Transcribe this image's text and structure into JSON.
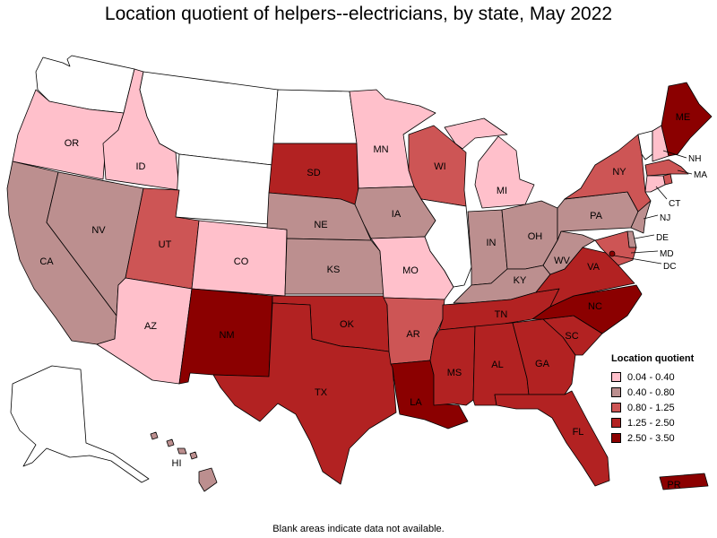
{
  "title": "Location quotient of helpers--electricians, by state, May 2022",
  "footnote": "Blank areas indicate data not available.",
  "legend": {
    "title": "Location quotient",
    "items": [
      {
        "label": "0.04 - 0.40",
        "color": "#ffc0cb"
      },
      {
        "label": "0.40 - 0.80",
        "color": "#bc8f8f"
      },
      {
        "label": "0.80 - 1.25",
        "color": "#cd5555"
      },
      {
        "label": "1.25 - 2.50",
        "color": "#b22222"
      },
      {
        "label": "2.50 - 3.50",
        "color": "#8b0000"
      }
    ]
  },
  "states": {
    "WA": {
      "label": "",
      "bin": null
    },
    "OR": {
      "label": "OR",
      "bin": 0
    },
    "CA": {
      "label": "CA",
      "bin": 1
    },
    "ID": {
      "label": "ID",
      "bin": 0
    },
    "NV": {
      "label": "NV",
      "bin": 1
    },
    "MT": {
      "label": "",
      "bin": null
    },
    "WY": {
      "label": "",
      "bin": null
    },
    "UT": {
      "label": "UT",
      "bin": 2
    },
    "AZ": {
      "label": "AZ",
      "bin": 0
    },
    "CO": {
      "label": "CO",
      "bin": 0
    },
    "NM": {
      "label": "NM",
      "bin": 4
    },
    "ND": {
      "label": "",
      "bin": null
    },
    "SD": {
      "label": "SD",
      "bin": 3
    },
    "NE": {
      "label": "NE",
      "bin": 1
    },
    "KS": {
      "label": "KS",
      "bin": 1
    },
    "OK": {
      "label": "OK",
      "bin": 3
    },
    "TX": {
      "label": "TX",
      "bin": 3
    },
    "MN": {
      "label": "MN",
      "bin": 0
    },
    "IA": {
      "label": "IA",
      "bin": 1
    },
    "MO": {
      "label": "MO",
      "bin": 0
    },
    "AR": {
      "label": "AR",
      "bin": 2
    },
    "LA": {
      "label": "LA",
      "bin": 4
    },
    "WI": {
      "label": "WI",
      "bin": 2
    },
    "IL": {
      "label": "",
      "bin": null
    },
    "MI": {
      "label": "MI",
      "bin": 0
    },
    "IN": {
      "label": "IN",
      "bin": 1
    },
    "OH": {
      "label": "OH",
      "bin": 1
    },
    "KY": {
      "label": "KY",
      "bin": 1
    },
    "TN": {
      "label": "TN",
      "bin": 3
    },
    "MS": {
      "label": "MS",
      "bin": 3
    },
    "AL": {
      "label": "AL",
      "bin": 3
    },
    "GA": {
      "label": "GA",
      "bin": 3
    },
    "FL": {
      "label": "FL",
      "bin": 3
    },
    "SC": {
      "label": "SC",
      "bin": 3
    },
    "NC": {
      "label": "NC",
      "bin": 4
    },
    "VA": {
      "label": "VA",
      "bin": 3
    },
    "WV": {
      "label": "WV",
      "bin": 1
    },
    "PA": {
      "label": "PA",
      "bin": 1
    },
    "NY": {
      "label": "NY",
      "bin": 2
    },
    "ME": {
      "label": "ME",
      "bin": 4
    },
    "VT": {
      "label": "",
      "bin": null
    },
    "NH": {
      "label": "NH",
      "bin": 0
    },
    "MA": {
      "label": "MA",
      "bin": 2
    },
    "CT": {
      "label": "CT",
      "bin": 0
    },
    "RI": {
      "label": "",
      "bin": 2
    },
    "NJ": {
      "label": "NJ",
      "bin": 1
    },
    "DE": {
      "label": "DE",
      "bin": 1
    },
    "MD": {
      "label": "MD",
      "bin": 2
    },
    "DC": {
      "label": "DC",
      "bin": 4
    },
    "AK": {
      "label": "",
      "bin": null
    },
    "HI": {
      "label": "HI",
      "bin": 1
    },
    "PR": {
      "label": "PR",
      "bin": 4
    }
  }
}
